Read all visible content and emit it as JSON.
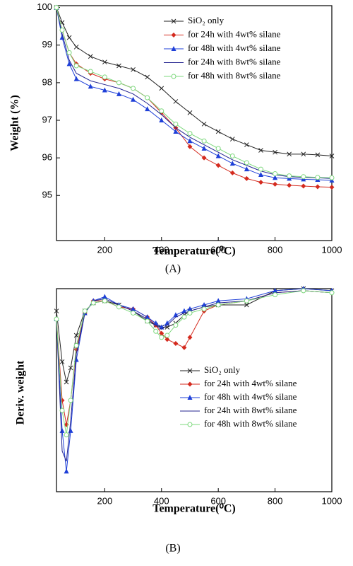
{
  "chart_data": [
    {
      "type": "line",
      "ylabel": "Weight (%)",
      "xlabel": "Temperature(⁰C)",
      "caption": "(A)",
      "xlim": [
        30,
        1000
      ],
      "ylim": [
        93.8,
        100.05
      ],
      "xticks": [
        200,
        400,
        600,
        800,
        1000
      ],
      "yticks": [
        95,
        96,
        97,
        98,
        99,
        100
      ],
      "x": [
        30,
        50,
        75,
        100,
        150,
        200,
        250,
        300,
        350,
        400,
        450,
        500,
        550,
        600,
        650,
        700,
        750,
        800,
        850,
        900,
        950,
        1000
      ],
      "series": [
        {
          "name": "SiO₂ only",
          "color": "#222222",
          "marker": "x",
          "values": [
            100,
            99.6,
            99.2,
            98.95,
            98.7,
            98.55,
            98.45,
            98.35,
            98.15,
            97.85,
            97.5,
            97.2,
            96.9,
            96.7,
            96.5,
            96.35,
            96.2,
            96.15,
            96.1,
            96.1,
            96.08,
            96.05
          ]
        },
        {
          "name": "for 24h with 4wt% silane",
          "color": "#d42a1e",
          "marker": "diamond",
          "values": [
            100,
            99.4,
            98.8,
            98.5,
            98.25,
            98.1,
            98.0,
            97.85,
            97.6,
            97.2,
            96.8,
            96.3,
            96.0,
            95.8,
            95.6,
            95.45,
            95.35,
            95.3,
            95.27,
            95.25,
            95.23,
            95.22
          ]
        },
        {
          "name": "for 48h with 4wt% silane",
          "color": "#1e3fd8",
          "marker": "triangle",
          "values": [
            100,
            99.2,
            98.5,
            98.1,
            97.9,
            97.8,
            97.7,
            97.55,
            97.3,
            97.0,
            96.7,
            96.45,
            96.25,
            96.05,
            95.85,
            95.7,
            95.55,
            95.47,
            95.45,
            95.43,
            95.42,
            95.4
          ]
        },
        {
          "name": "for 24h with 8wt% silane",
          "color": "#23238f",
          "marker": "none",
          "values": [
            100,
            99.3,
            98.6,
            98.25,
            98.05,
            97.95,
            97.85,
            97.7,
            97.45,
            97.15,
            96.8,
            96.55,
            96.35,
            96.15,
            95.95,
            95.8,
            95.65,
            95.55,
            95.5,
            95.48,
            95.47,
            95.45
          ]
        },
        {
          "name": "for 48h with 8wt% silane",
          "color": "#7ed87e",
          "marker": "circle",
          "values": [
            100,
            99.4,
            98.8,
            98.45,
            98.3,
            98.15,
            98.0,
            97.85,
            97.6,
            97.25,
            96.9,
            96.65,
            96.45,
            96.25,
            96.05,
            95.87,
            95.7,
            95.58,
            95.52,
            95.5,
            95.48,
            95.47
          ]
        }
      ]
    },
    {
      "type": "line",
      "ylabel": "Deriv. weight",
      "xlabel": "Temperature(⁰C)",
      "caption": "(B)",
      "xlim": [
        30,
        1000
      ],
      "ylim": [
        0,
        100
      ],
      "xticks": [
        200,
        400,
        600,
        800,
        1000
      ],
      "x": [
        30,
        50,
        65,
        80,
        100,
        130,
        160,
        200,
        250,
        300,
        350,
        380,
        400,
        420,
        450,
        480,
        500,
        550,
        600,
        700,
        800,
        900,
        1000
      ],
      "series": [
        {
          "name": "SiO₂ only",
          "color": "#222222",
          "marker": "x",
          "values": [
            89,
            64,
            54,
            61,
            77,
            89,
            93,
            94,
            92,
            89,
            84,
            82,
            81,
            81,
            83,
            87,
            89,
            91,
            92,
            92,
            99,
            100,
            99
          ]
        },
        {
          "name": "for 24h  with 4wt% silane",
          "color": "#d42a1e",
          "marker": "diamond",
          "values": [
            85,
            45,
            33,
            45,
            70,
            88,
            94,
            94,
            91,
            90,
            86,
            82,
            78,
            75,
            73,
            71,
            76,
            89,
            92,
            94,
            98,
            99,
            98
          ]
        },
        {
          "name": "for 48h  with 4wt% silane",
          "color": "#1e3fd8",
          "marker": "triangle",
          "values": [
            85,
            30,
            10,
            30,
            65,
            88,
            94,
            96,
            92,
            90,
            86,
            83,
            81,
            83,
            87,
            89,
            90,
            92,
            94,
            95,
            99,
            100,
            99
          ]
        },
        {
          "name": "for 24h  with 8wt% silane",
          "color": "#23238f",
          "marker": "none",
          "values": [
            85,
            20,
            15,
            35,
            68,
            88,
            94,
            95,
            92,
            89,
            85,
            82,
            80,
            82,
            86,
            88,
            89,
            91,
            93,
            94,
            98,
            99,
            98
          ]
        },
        {
          "name": "for 48h  with 8wt% silane",
          "color": "#7ed87e",
          "marker": "circle",
          "values": [
            85,
            40,
            28,
            45,
            72,
            89,
            93,
            94,
            91,
            88,
            84,
            79,
            76,
            77,
            82,
            86,
            88,
            90,
            92,
            94,
            97,
            99,
            98
          ]
        }
      ]
    }
  ]
}
